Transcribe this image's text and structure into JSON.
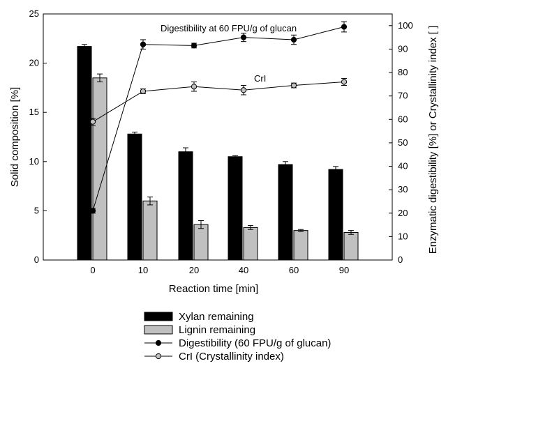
{
  "chart_data": {
    "type": "bar",
    "categories": [
      "0",
      "10",
      "20",
      "40",
      "60",
      "90"
    ],
    "xlabel": "Reaction time [min]",
    "ylabel": "Solid composition [%]",
    "y2label": "Enzymatic digestibility [%] or Crystallinity index [ ]",
    "ylim": [
      0,
      25
    ],
    "y2lim": [
      0,
      105
    ],
    "yticks": [
      0,
      5,
      10,
      15,
      20,
      25
    ],
    "y2ticks": [
      0,
      10,
      20,
      30,
      40,
      50,
      60,
      70,
      80,
      90,
      100
    ],
    "grid": false,
    "legend_position": "bottom",
    "bar_series": [
      {
        "name": "Xylan remaining",
        "color": "#000000",
        "values": [
          21.7,
          12.8,
          11.0,
          10.5,
          9.7,
          9.2
        ],
        "errors": [
          0.2,
          0.2,
          0.4,
          0.1,
          0.3,
          0.3
        ]
      },
      {
        "name": "Lignin remaining",
        "color": "#c0c0c0",
        "values": [
          18.5,
          6.0,
          3.6,
          3.3,
          3.0,
          2.8
        ],
        "errors": [
          0.4,
          0.4,
          0.4,
          0.2,
          0.1,
          0.2
        ]
      }
    ],
    "line_series": [
      {
        "name": "Digestibility (60 FPU/g of glucan)",
        "marker_fill": "#000000",
        "values": [
          21,
          92,
          91.5,
          95,
          94,
          99.5
        ],
        "errors": [
          1,
          2,
          1,
          1.8,
          2,
          2.2
        ]
      },
      {
        "name": "CrI (Crystallinity index)",
        "marker_fill": "#c0c0c0",
        "values": [
          59,
          72,
          74,
          72.5,
          74.5,
          76
        ],
        "errors": [
          1.5,
          1,
          2,
          2,
          1,
          1.5
        ]
      }
    ],
    "annotations": [
      {
        "text": "Digestibility at 60 FPU/g of glucan"
      },
      {
        "text": "CrI"
      }
    ]
  }
}
